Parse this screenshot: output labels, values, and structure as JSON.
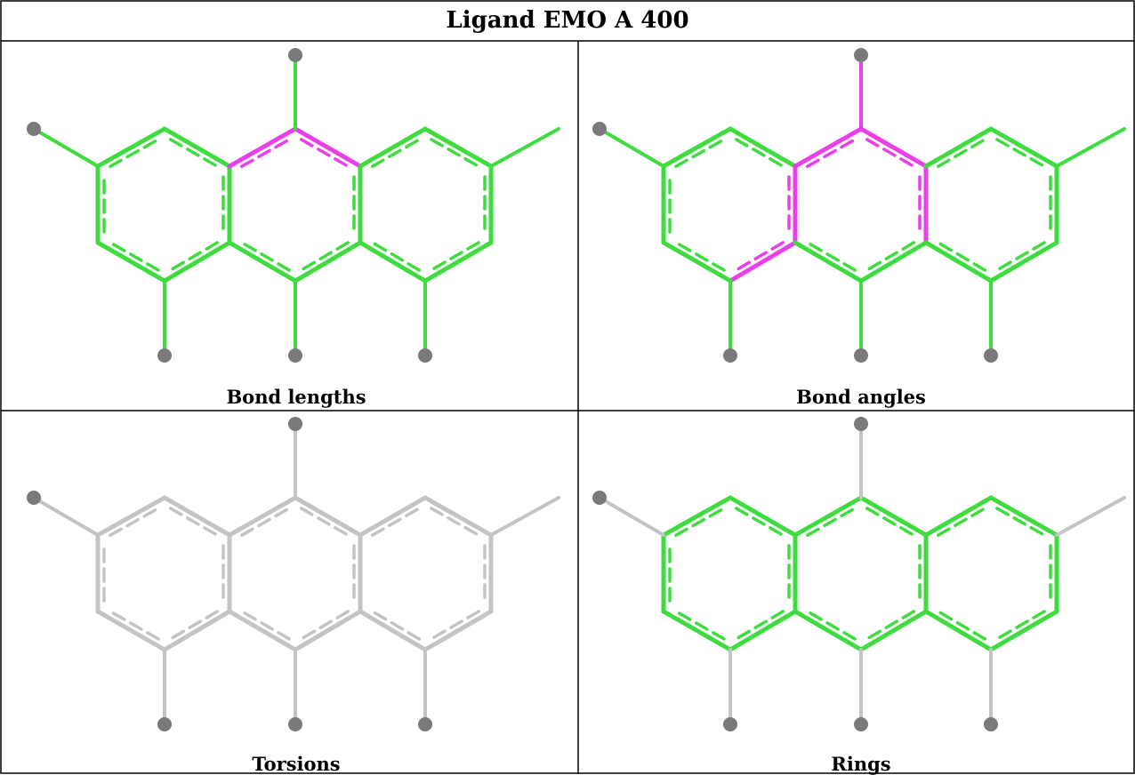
{
  "title": "Ligand EMO A 400",
  "panels": [
    {
      "caption": "Bond lengths",
      "highlight": "#ea3fea"
    },
    {
      "caption": "Bond angles",
      "highlight": "#ea3fea"
    },
    {
      "caption": "Torsions"
    },
    {
      "caption": "Rings"
    }
  ],
  "colors": {
    "green": "#3fdc3f",
    "magenta": "#ea3fea",
    "grey": "#c4c4c4",
    "atom": "#7a7a7a",
    "border": "#000000"
  }
}
